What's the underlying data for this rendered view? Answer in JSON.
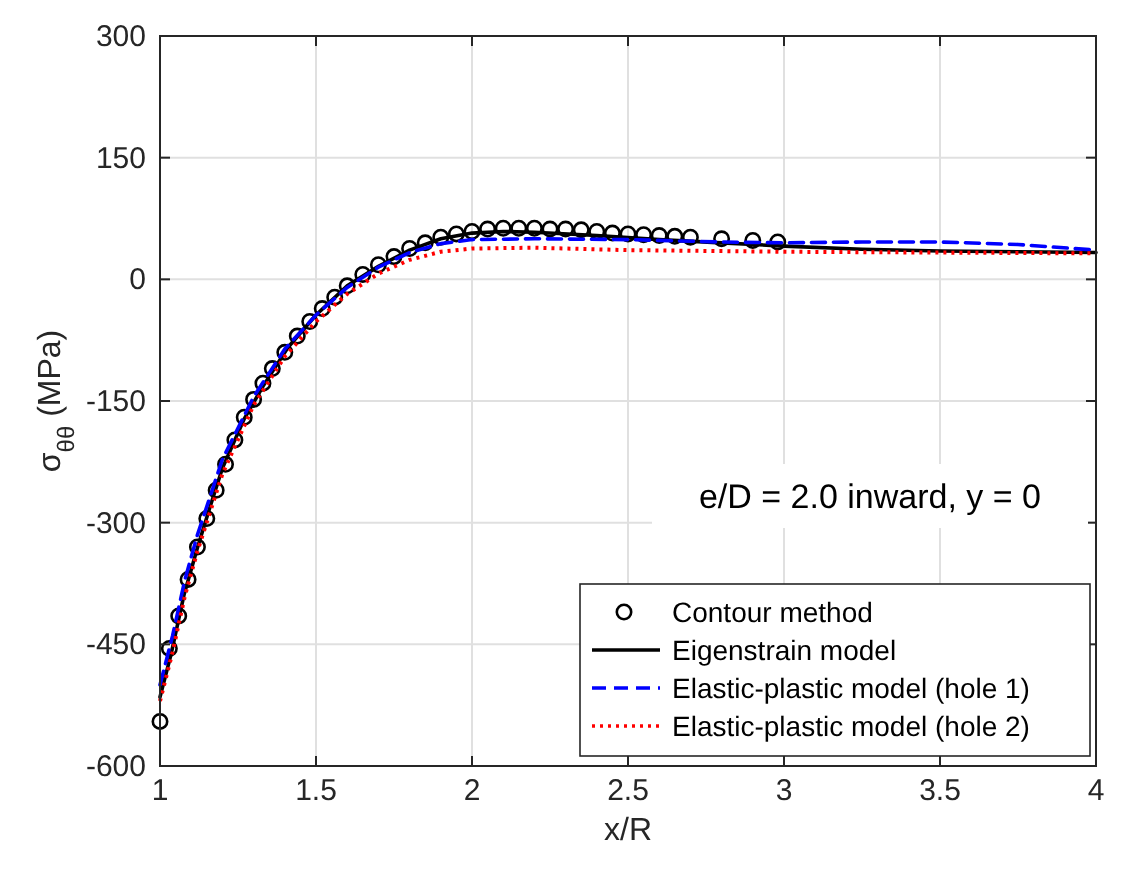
{
  "chart_data": {
    "type": "line",
    "xlabel": "x/R",
    "ylabel": "σ$_{θθ}$ (MPa)",
    "xlim": [
      1,
      4
    ],
    "xticks": [
      1,
      1.5,
      2,
      2.5,
      3,
      3.5,
      4
    ],
    "ylim": [
      -600,
      300
    ],
    "yticks": [
      -600,
      -450,
      -300,
      -150,
      0,
      150,
      300
    ],
    "grid": true,
    "legend": "bottom right",
    "annotations": [
      "e/D = 2.0 inward, y = 0"
    ],
    "series": [
      {
        "name": "Contour method",
        "type": "scatter",
        "marker": "circle",
        "color": "#000000",
        "x": [
          1.0,
          1.03,
          1.06,
          1.09,
          1.12,
          1.15,
          1.18,
          1.21,
          1.24,
          1.27,
          1.3,
          1.33,
          1.36,
          1.4,
          1.44,
          1.48,
          1.52,
          1.56,
          1.6,
          1.65,
          1.7,
          1.75,
          1.8,
          1.85,
          1.9,
          1.95,
          2.0,
          2.05,
          2.1,
          2.15,
          2.2,
          2.25,
          2.3,
          2.35,
          2.4,
          2.45,
          2.5,
          2.55,
          2.6,
          2.65,
          2.7,
          2.8,
          2.9,
          2.98
        ],
        "values": [
          -545,
          -455,
          -415,
          -370,
          -330,
          -295,
          -260,
          -228,
          -198,
          -170,
          -148,
          -128,
          -110,
          -90,
          -70,
          -52,
          -36,
          -22,
          -8,
          6,
          18,
          28,
          38,
          45,
          52,
          56,
          59,
          62,
          63,
          63,
          63,
          62,
          62,
          61,
          59,
          57,
          56,
          55,
          54,
          53,
          52,
          50,
          48,
          46
        ]
      },
      {
        "name": "Eigenstrain model",
        "line_style": "solid",
        "color": "#000000",
        "x": [
          1.0,
          1.035,
          1.077,
          1.12,
          1.16,
          1.2,
          1.27,
          1.33,
          1.41,
          1.5,
          1.6,
          1.7,
          1.8,
          1.9,
          2.0,
          2.1,
          2.2,
          2.4,
          2.6,
          2.8,
          3.0,
          3.25,
          3.5,
          3.75,
          4.0
        ],
        "values": [
          -515,
          -463,
          -389,
          -331,
          -281,
          -233,
          -172,
          -132,
          -84,
          -44,
          -8,
          16,
          36,
          50,
          57,
          59,
          58,
          54,
          49,
          45,
          41,
          37,
          35,
          34,
          33
        ]
      },
      {
        "name": "Elastic-plastic model (hole 1)",
        "line_style": "dashed",
        "color": "#0000ff",
        "x": [
          1.0,
          1.04,
          1.08,
          1.12,
          1.2,
          1.3,
          1.4,
          1.5,
          1.6,
          1.7,
          1.8,
          1.9,
          2.0,
          2.2,
          2.5,
          2.8,
          3.0,
          3.25,
          3.5,
          3.75,
          4.0
        ],
        "values": [
          -500,
          -440,
          -370,
          -315,
          -222,
          -145,
          -86,
          -44,
          -10,
          15,
          33,
          44,
          49,
          50,
          49,
          46,
          45,
          46,
          46,
          43,
          36
        ]
      },
      {
        "name": "Elastic-plastic model (hole 2)",
        "line_style": "dotted",
        "color": "#ff0000",
        "x": [
          1.0,
          1.04,
          1.08,
          1.12,
          1.2,
          1.3,
          1.4,
          1.5,
          1.6,
          1.7,
          1.8,
          1.9,
          2.0,
          2.2,
          2.5,
          3.0,
          3.5,
          4.0
        ],
        "values": [
          -520,
          -460,
          -390,
          -335,
          -240,
          -155,
          -95,
          -52,
          -18,
          7,
          24,
          34,
          38,
          39,
          36,
          34,
          33,
          32
        ]
      }
    ]
  }
}
